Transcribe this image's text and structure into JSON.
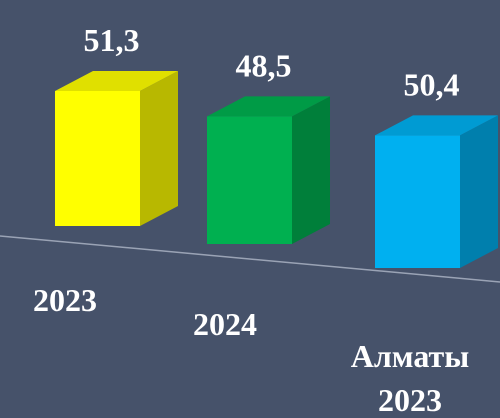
{
  "chart_data": {
    "type": "bar3d",
    "categories": [
      "2023",
      "2024",
      "Алматы\n2023"
    ],
    "values": [
      51.3,
      48.5,
      50.4
    ],
    "value_labels": [
      "51,3",
      "48,5",
      "50,4"
    ],
    "colors": [
      "#ffff00",
      "#00b050",
      "#00b0f0"
    ]
  }
}
